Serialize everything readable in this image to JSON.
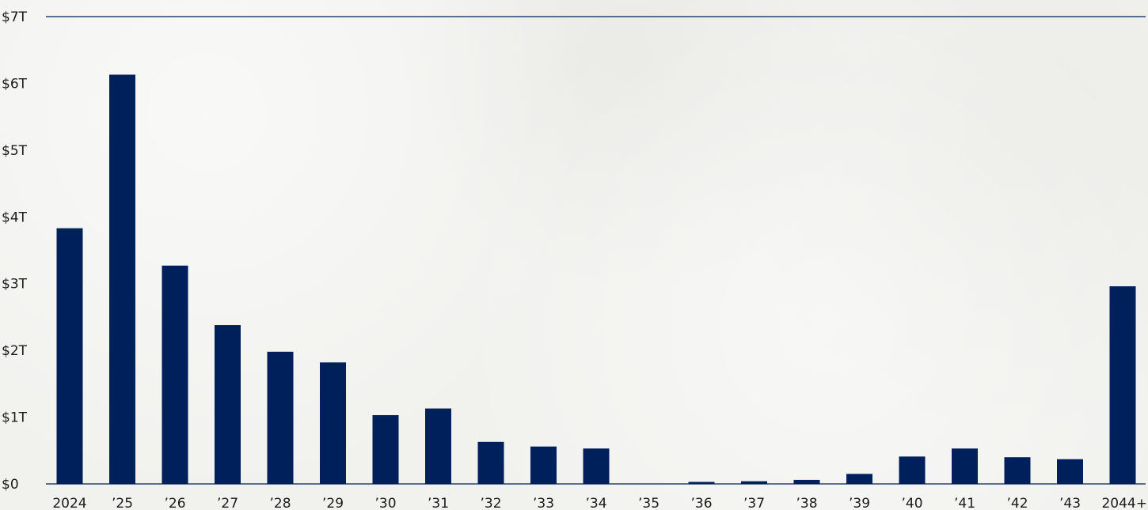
{
  "colors": {
    "bar": "#00205b",
    "axis": "#00205b",
    "text": "#1c1c1c"
  },
  "chart_data": {
    "type": "bar",
    "title": "",
    "xlabel": "",
    "ylabel": "",
    "ylim": [
      0,
      7
    ],
    "y_ticks": [
      0,
      1,
      2,
      3,
      4,
      5,
      6,
      7
    ],
    "y_tick_labels": [
      "$0",
      "$1T",
      "$2T",
      "$3T",
      "$4T",
      "$5T",
      "$6T",
      "$7T"
    ],
    "grid": false,
    "categories": [
      "2024",
      "’25",
      "’26",
      "’27",
      "’28",
      "’29",
      "’30",
      "’31",
      "’32",
      "’33",
      "’34",
      "’35",
      "’36",
      "’37",
      "’38",
      "’39",
      "’40",
      "’41",
      "’42",
      "’43",
      "2044+"
    ],
    "values": [
      3.83,
      6.13,
      3.27,
      2.38,
      1.98,
      1.82,
      1.03,
      1.13,
      0.63,
      0.56,
      0.53,
      0.0,
      0.03,
      0.04,
      0.06,
      0.15,
      0.41,
      0.53,
      0.4,
      0.37,
      2.96
    ]
  }
}
